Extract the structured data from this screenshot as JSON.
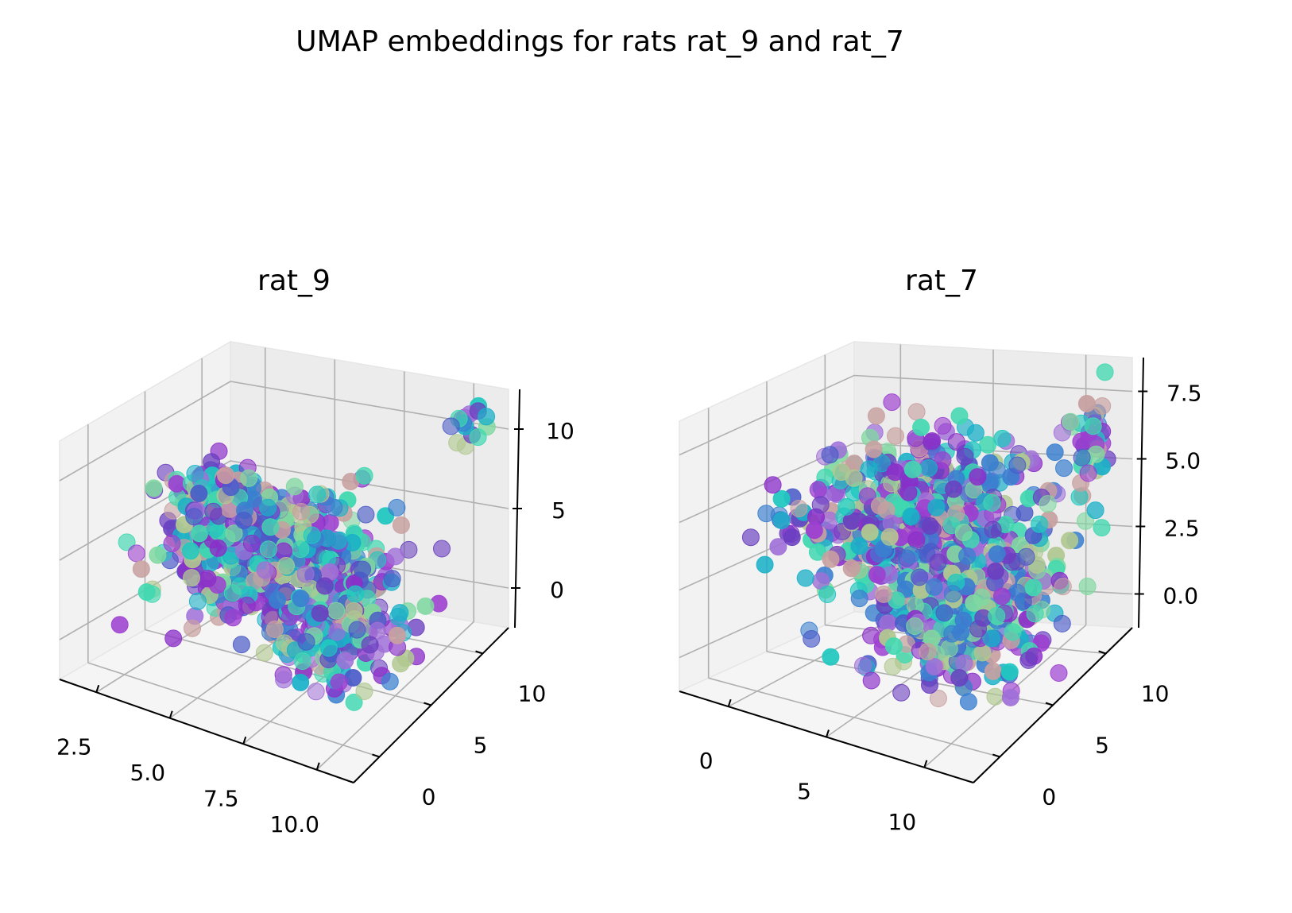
{
  "figure": {
    "suptitle": "UMAP embeddings for rats rat_9 and rat_7"
  },
  "chart_data": [
    {
      "type": "scatter",
      "projection": "3d",
      "title": "rat_9",
      "xlabel": "",
      "ylabel": "",
      "zlabel": "",
      "xlim": [
        1.5,
        12.0
      ],
      "ylim": [
        -2.0,
        12.0
      ],
      "zlim": [
        -3.0,
        11.0
      ],
      "x_ticks": [
        "2.5",
        "5.0",
        "7.5",
        "10.0"
      ],
      "y_ticks": [
        "0",
        "5",
        "10"
      ],
      "z_ticks": [
        "0",
        "5",
        "10"
      ],
      "grid": true,
      "point_count_approx": 900,
      "palette": [
        "#8B2FC9",
        "#9C3FD0",
        "#6A3FC0",
        "#4A5BC8",
        "#3A7FD0",
        "#1AB0C8",
        "#20C8C0",
        "#40D8B0",
        "#7FD8A0",
        "#B0C890",
        "#C8A0A0",
        "#A070D8"
      ],
      "clusters": [
        {
          "name": "",
          "center": [
            6.5,
            5.0,
            3.0
          ],
          "spread": [
            1.8,
            2.2,
            1.6
          ],
          "n": 600
        },
        {
          "name": "",
          "center": [
            3.0,
            7.5,
            4.5
          ],
          "spread": [
            0.8,
            0.9,
            0.6
          ],
          "n": 120
        },
        {
          "name": "",
          "center": [
            9.5,
            3.0,
            1.0
          ],
          "spread": [
            1.0,
            1.4,
            1.2
          ],
          "n": 140
        },
        {
          "name": "",
          "center": [
            11.0,
            10.5,
            9.5
          ],
          "spread": [
            0.4,
            0.4,
            0.5
          ],
          "n": 15
        }
      ]
    },
    {
      "type": "scatter",
      "projection": "3d",
      "title": "rat_7",
      "xlabel": "",
      "ylabel": "",
      "zlabel": "",
      "xlim": [
        -3.0,
        12.0
      ],
      "ylim": [
        -2.0,
        13.0
      ],
      "zlim": [
        -1.0,
        9.0
      ],
      "x_ticks": [
        "0",
        "5",
        "10"
      ],
      "y_ticks": [
        "0",
        "5",
        "10"
      ],
      "z_ticks": [
        "0.0",
        "2.5",
        "5.0",
        "7.5"
      ],
      "grid": true,
      "point_count_approx": 1000,
      "palette": [
        "#8B2FC9",
        "#9C3FD0",
        "#6A3FC0",
        "#4A5BC8",
        "#3A7FD0",
        "#1AB0C8",
        "#20C8C0",
        "#40D8B0",
        "#7FD8A0",
        "#B0C890",
        "#C8A0A0",
        "#A070D8"
      ],
      "clusters": [
        {
          "name": "",
          "center": [
            3.0,
            8.0,
            4.0
          ],
          "spread": [
            2.8,
            2.6,
            1.4
          ],
          "n": 550
        },
        {
          "name": "",
          "center": [
            8.5,
            4.0,
            2.5
          ],
          "spread": [
            2.0,
            2.2,
            1.2
          ],
          "n": 380
        },
        {
          "name": "",
          "center": [
            10.5,
            11.5,
            6.5
          ],
          "spread": [
            0.5,
            0.6,
            1.2
          ],
          "n": 40
        }
      ]
    }
  ]
}
